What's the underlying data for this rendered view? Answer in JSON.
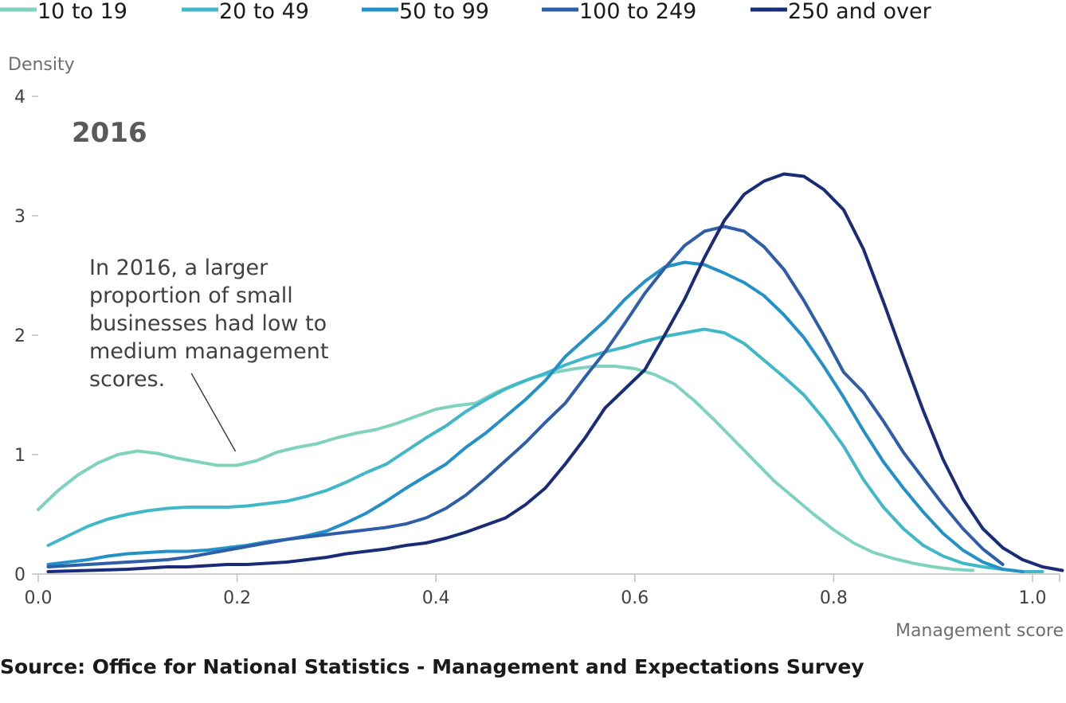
{
  "chart_data": {
    "type": "line",
    "title": "2016",
    "xlabel": "Management score",
    "ylabel": "Density",
    "xlim": [
      0,
      1.03
    ],
    "ylim": [
      0,
      4
    ],
    "x_ticks": [
      "0.0",
      "0.2",
      "0.4",
      "0.6",
      "0.8",
      "1.0"
    ],
    "y_ticks": [
      "0",
      "1",
      "2",
      "3",
      "4"
    ],
    "legend_position": "top",
    "annotation": {
      "lines": [
        "In 2016, a larger",
        "proportion of small",
        "businesses had low to",
        "medium management",
        "scores."
      ],
      "arrow_from": [
        0.154,
        1.68
      ],
      "arrow_to": [
        0.2,
        1.0
      ]
    },
    "series": [
      {
        "name": "10 to 19",
        "color": "#7fd3be",
        "x": [
          0.0,
          0.02,
          0.04,
          0.06,
          0.08,
          0.1,
          0.12,
          0.14,
          0.16,
          0.18,
          0.2,
          0.22,
          0.24,
          0.26,
          0.28,
          0.3,
          0.32,
          0.34,
          0.36,
          0.38,
          0.4,
          0.42,
          0.44,
          0.46,
          0.48,
          0.5,
          0.52,
          0.54,
          0.56,
          0.58,
          0.6,
          0.62,
          0.64,
          0.66,
          0.68,
          0.7,
          0.72,
          0.74,
          0.76,
          0.78,
          0.8,
          0.82,
          0.84,
          0.86,
          0.88,
          0.9,
          0.92,
          0.94
        ],
        "y": [
          0.54,
          0.7,
          0.83,
          0.93,
          1.0,
          1.03,
          1.01,
          0.97,
          0.94,
          0.91,
          0.91,
          0.95,
          1.02,
          1.06,
          1.09,
          1.14,
          1.18,
          1.21,
          1.26,
          1.32,
          1.38,
          1.41,
          1.43,
          1.52,
          1.59,
          1.65,
          1.69,
          1.72,
          1.74,
          1.74,
          1.72,
          1.67,
          1.59,
          1.45,
          1.29,
          1.12,
          0.95,
          0.78,
          0.64,
          0.5,
          0.37,
          0.26,
          0.18,
          0.13,
          0.09,
          0.06,
          0.04,
          0.03
        ]
      },
      {
        "name": "20 to 49",
        "color": "#40b8c8",
        "x": [
          0.01,
          0.03,
          0.05,
          0.07,
          0.09,
          0.11,
          0.13,
          0.15,
          0.17,
          0.19,
          0.21,
          0.23,
          0.25,
          0.27,
          0.29,
          0.31,
          0.33,
          0.35,
          0.37,
          0.39,
          0.41,
          0.43,
          0.45,
          0.47,
          0.49,
          0.51,
          0.53,
          0.55,
          0.57,
          0.59,
          0.61,
          0.63,
          0.65,
          0.67,
          0.69,
          0.71,
          0.73,
          0.75,
          0.77,
          0.79,
          0.81,
          0.83,
          0.85,
          0.87,
          0.89,
          0.91,
          0.93,
          0.95,
          0.97,
          0.99,
          1.01
        ],
        "y": [
          0.24,
          0.32,
          0.4,
          0.46,
          0.5,
          0.53,
          0.55,
          0.56,
          0.56,
          0.56,
          0.57,
          0.59,
          0.61,
          0.65,
          0.7,
          0.77,
          0.85,
          0.92,
          1.03,
          1.14,
          1.24,
          1.36,
          1.46,
          1.55,
          1.62,
          1.68,
          1.75,
          1.81,
          1.86,
          1.9,
          1.95,
          1.99,
          2.02,
          2.05,
          2.02,
          1.93,
          1.79,
          1.65,
          1.5,
          1.3,
          1.07,
          0.79,
          0.56,
          0.38,
          0.24,
          0.15,
          0.09,
          0.06,
          0.04,
          0.02,
          0.02
        ]
      },
      {
        "name": "50 to 99",
        "color": "#2391c8",
        "x": [
          0.01,
          0.03,
          0.05,
          0.07,
          0.09,
          0.11,
          0.13,
          0.15,
          0.17,
          0.19,
          0.21,
          0.23,
          0.25,
          0.27,
          0.29,
          0.31,
          0.33,
          0.35,
          0.37,
          0.39,
          0.41,
          0.43,
          0.45,
          0.47,
          0.49,
          0.51,
          0.53,
          0.55,
          0.57,
          0.59,
          0.61,
          0.63,
          0.65,
          0.67,
          0.69,
          0.71,
          0.73,
          0.75,
          0.77,
          0.79,
          0.81,
          0.83,
          0.85,
          0.87,
          0.89,
          0.91,
          0.93,
          0.95,
          0.97,
          0.99
        ],
        "y": [
          0.08,
          0.1,
          0.12,
          0.15,
          0.17,
          0.18,
          0.19,
          0.19,
          0.2,
          0.22,
          0.24,
          0.27,
          0.29,
          0.32,
          0.36,
          0.43,
          0.51,
          0.61,
          0.72,
          0.82,
          0.92,
          1.06,
          1.18,
          1.32,
          1.46,
          1.62,
          1.82,
          1.97,
          2.12,
          2.3,
          2.45,
          2.57,
          2.61,
          2.59,
          2.52,
          2.44,
          2.33,
          2.17,
          1.98,
          1.74,
          1.48,
          1.2,
          0.94,
          0.72,
          0.52,
          0.34,
          0.2,
          0.1,
          0.04,
          0.02
        ]
      },
      {
        "name": "100 to 249",
        "color": "#2e5ea8",
        "x": [
          0.01,
          0.03,
          0.05,
          0.07,
          0.09,
          0.11,
          0.13,
          0.15,
          0.17,
          0.19,
          0.21,
          0.23,
          0.25,
          0.27,
          0.29,
          0.31,
          0.33,
          0.35,
          0.37,
          0.39,
          0.41,
          0.43,
          0.45,
          0.47,
          0.49,
          0.51,
          0.53,
          0.55,
          0.57,
          0.59,
          0.61,
          0.63,
          0.65,
          0.67,
          0.69,
          0.71,
          0.73,
          0.75,
          0.77,
          0.79,
          0.81,
          0.83,
          0.85,
          0.87,
          0.89,
          0.91,
          0.93,
          0.95,
          0.97
        ],
        "y": [
          0.06,
          0.07,
          0.08,
          0.09,
          0.1,
          0.11,
          0.12,
          0.14,
          0.17,
          0.2,
          0.23,
          0.26,
          0.29,
          0.31,
          0.33,
          0.35,
          0.37,
          0.39,
          0.42,
          0.47,
          0.55,
          0.66,
          0.8,
          0.95,
          1.1,
          1.27,
          1.43,
          1.65,
          1.86,
          2.1,
          2.35,
          2.56,
          2.75,
          2.87,
          2.91,
          2.87,
          2.74,
          2.55,
          2.29,
          2.0,
          1.69,
          1.52,
          1.28,
          1.02,
          0.8,
          0.58,
          0.38,
          0.21,
          0.08
        ]
      },
      {
        "name": "250 and over",
        "color": "#1a2c78",
        "x": [
          0.01,
          0.03,
          0.05,
          0.07,
          0.09,
          0.11,
          0.13,
          0.15,
          0.17,
          0.19,
          0.21,
          0.23,
          0.25,
          0.27,
          0.29,
          0.31,
          0.33,
          0.35,
          0.37,
          0.39,
          0.41,
          0.43,
          0.45,
          0.47,
          0.49,
          0.51,
          0.53,
          0.55,
          0.57,
          0.59,
          0.61,
          0.63,
          0.65,
          0.67,
          0.69,
          0.71,
          0.73,
          0.75,
          0.77,
          0.79,
          0.81,
          0.83,
          0.85,
          0.87,
          0.89,
          0.91,
          0.93,
          0.95,
          0.97,
          0.99,
          1.01,
          1.03
        ],
        "y": [
          0.02,
          0.025,
          0.03,
          0.035,
          0.04,
          0.05,
          0.06,
          0.06,
          0.07,
          0.08,
          0.08,
          0.09,
          0.1,
          0.12,
          0.14,
          0.17,
          0.19,
          0.21,
          0.24,
          0.26,
          0.3,
          0.35,
          0.41,
          0.47,
          0.58,
          0.72,
          0.92,
          1.14,
          1.39,
          1.55,
          1.71,
          2.0,
          2.3,
          2.65,
          2.96,
          3.18,
          3.29,
          3.35,
          3.33,
          3.22,
          3.05,
          2.72,
          2.28,
          1.82,
          1.37,
          0.96,
          0.63,
          0.38,
          0.22,
          0.12,
          0.06,
          0.03
        ]
      }
    ]
  },
  "source": "Source: Office for National Statistics - Management and Expectations Survey"
}
